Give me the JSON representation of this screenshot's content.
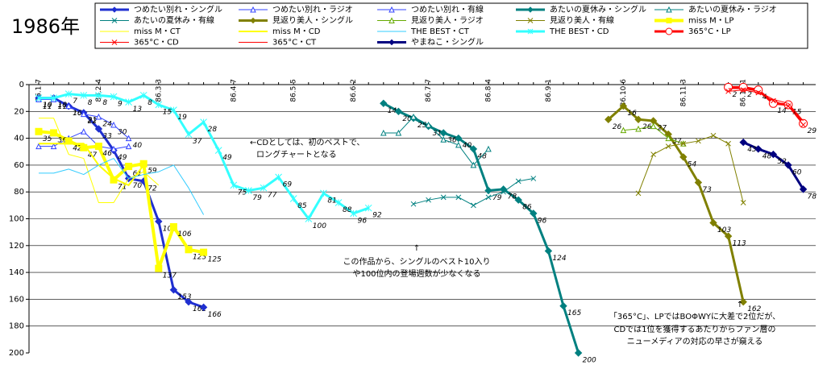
{
  "chart_data": {
    "type": "line",
    "title": "1986年",
    "categories": [
      "86.1.7",
      null,
      null,
      null,
      "86.2.4",
      null,
      null,
      null,
      "86.3.3",
      null,
      null,
      null,
      null,
      "86.4.7",
      null,
      null,
      null,
      "86.5.5",
      null,
      null,
      null,
      "86.6.2",
      null,
      null,
      null,
      null,
      "86.7.7",
      null,
      null,
      null,
      "86.8.4",
      null,
      null,
      null,
      "86.9.1",
      null,
      null,
      null,
      null,
      "86.10.6",
      null,
      null,
      null,
      "86.11.3",
      null,
      null,
      null,
      "86.12.1",
      null,
      null,
      null,
      null
    ],
    "ylim": [
      0,
      200
    ],
    "y_inverted": true,
    "yticks": [
      0,
      20,
      40,
      60,
      80,
      100,
      120,
      140,
      160,
      180,
      200
    ],
    "grid": true,
    "annotations": [
      "←CDとしては、初のベストで、",
      "ロングチャートとなる",
      "↑",
      "この作品から、シングルのベスト10入り",
      "や100位内の登場週数が少なくなる",
      "↑",
      "「365°C」、LPではBOΦWYに大差で2位だが、",
      "CDでは1位を獲得するあたりからファン層の",
      "ニューメディアの対応の早さが窺える"
    ],
    "series": [
      {
        "name": "つめたい別れ・シングル",
        "color": "#1f2fd0",
        "width": 3,
        "marker": "diamond",
        "marker_fill": "#1f2fd0",
        "labels": true,
        "values": [
          10,
          10,
          16,
          21,
          33,
          49,
          70,
          72,
          102,
          153,
          162,
          166,
          null,
          null,
          null,
          null,
          null,
          null,
          null,
          null,
          null,
          null,
          null,
          null,
          null,
          null,
          null,
          null,
          null,
          null,
          null,
          null,
          null,
          null,
          null,
          null,
          null,
          null,
          null,
          null,
          null,
          null,
          null,
          null,
          null,
          null,
          null,
          null,
          null,
          null,
          null,
          null
        ]
      },
      {
        "name": "つめたい別れ・ラジオ",
        "color": "#3344ff",
        "width": 1,
        "marker": "triangle",
        "marker_fill": "#ffffff",
        "labels": false,
        "values": [
          46,
          46,
          40,
          35,
          46,
          48,
          46,
          null,
          null,
          null,
          null,
          null,
          null,
          null,
          null,
          null,
          null,
          null,
          null,
          null,
          null,
          null,
          null,
          null,
          null,
          null,
          null,
          null,
          null,
          null,
          null,
          null,
          null,
          null,
          null,
          null,
          null,
          null,
          null,
          null,
          null,
          null,
          null,
          null,
          null,
          null,
          null,
          null,
          null,
          null,
          null,
          null
        ]
      },
      {
        "name": "つめたい別れ・有線",
        "color": "#3344ff",
        "width": 1,
        "marker": "triangle",
        "marker_fill": "#ffffff",
        "labels": true,
        "values": [
          11,
          11,
          16,
          22,
          24,
          30,
          40,
          null,
          null,
          null,
          null,
          null,
          null,
          null,
          null,
          null,
          null,
          null,
          null,
          null,
          null,
          null,
          null,
          null,
          null,
          null,
          null,
          null,
          null,
          null,
          null,
          null,
          null,
          null,
          null,
          null,
          null,
          null,
          null,
          null,
          null,
          null,
          null,
          null,
          null,
          null,
          null,
          null,
          null,
          null,
          null,
          null
        ]
      },
      {
        "name": "あたいの夏休み・シングル",
        "color": "#008080",
        "width": 3,
        "marker": "diamond",
        "marker_fill": "#008080",
        "labels": true,
        "values": [
          null,
          null,
          null,
          null,
          null,
          null,
          null,
          null,
          null,
          null,
          null,
          null,
          null,
          null,
          null,
          null,
          null,
          null,
          null,
          null,
          null,
          null,
          null,
          14,
          20,
          25,
          31,
          36,
          40,
          48,
          79,
          78,
          86,
          96,
          124,
          165,
          200,
          null,
          null,
          null,
          null,
          null,
          null,
          null,
          null,
          null,
          null,
          null,
          null,
          null,
          null,
          null
        ]
      },
      {
        "name": "あたいの夏休み・ラジオ",
        "color": "#008080",
        "width": 1,
        "marker": "triangle",
        "marker_fill": "#ffffff",
        "labels": false,
        "values": [
          null,
          null,
          null,
          null,
          null,
          null,
          null,
          null,
          null,
          null,
          null,
          null,
          null,
          null,
          null,
          null,
          null,
          null,
          null,
          null,
          null,
          null,
          null,
          36,
          36,
          24,
          30,
          41,
          45,
          60,
          48,
          null,
          null,
          null,
          null,
          null,
          null,
          null,
          null,
          null,
          null,
          null,
          null,
          null,
          null,
          null,
          null,
          null,
          null,
          null,
          null,
          null
        ]
      },
      {
        "name": "あたいの夏休み・有線",
        "color": "#008080",
        "width": 1,
        "marker": "x",
        "marker_fill": "#008080",
        "labels": false,
        "values": [
          null,
          null,
          null,
          null,
          null,
          null,
          null,
          null,
          null,
          null,
          null,
          null,
          null,
          null,
          null,
          null,
          null,
          null,
          null,
          null,
          null,
          null,
          null,
          null,
          null,
          89,
          86,
          84,
          84,
          90,
          84,
          80,
          72,
          70,
          null,
          null,
          null,
          null,
          null,
          null,
          null,
          null,
          null,
          null,
          null,
          null,
          null,
          null,
          null,
          null,
          null,
          null
        ]
      },
      {
        "name": "見返り美人・シングル",
        "color": "#808000",
        "width": 3,
        "marker": "diamond",
        "marker_fill": "#808000",
        "labels": true,
        "values": [
          null,
          null,
          null,
          null,
          null,
          null,
          null,
          null,
          null,
          null,
          null,
          null,
          null,
          null,
          null,
          null,
          null,
          null,
          null,
          null,
          null,
          null,
          null,
          null,
          null,
          null,
          null,
          null,
          null,
          null,
          null,
          null,
          null,
          null,
          null,
          null,
          null,
          null,
          26,
          16,
          26,
          27,
          37,
          54,
          73,
          103,
          113,
          162,
          null,
          null,
          null,
          null
        ]
      },
      {
        "name": "見返り美人・ラジオ",
        "color": "#66aa00",
        "width": 1,
        "marker": "triangle",
        "marker_fill": "#ffffff",
        "labels": false,
        "values": [
          null,
          null,
          null,
          null,
          null,
          null,
          null,
          null,
          null,
          null,
          null,
          null,
          null,
          null,
          null,
          null,
          null,
          null,
          null,
          null,
          null,
          null,
          null,
          null,
          null,
          null,
          null,
          null,
          null,
          null,
          null,
          null,
          null,
          null,
          null,
          null,
          null,
          null,
          null,
          34,
          33,
          31,
          40,
          44,
          null,
          null,
          null,
          null,
          null,
          null,
          null,
          null
        ]
      },
      {
        "name": "見返り美人・有線",
        "color": "#808000",
        "width": 1,
        "marker": "x",
        "marker_fill": "#808000",
        "labels": false,
        "values": [
          null,
          null,
          null,
          null,
          null,
          null,
          null,
          null,
          null,
          null,
          null,
          null,
          null,
          null,
          null,
          null,
          null,
          null,
          null,
          null,
          null,
          null,
          null,
          null,
          null,
          null,
          null,
          null,
          null,
          null,
          null,
          null,
          null,
          null,
          null,
          null,
          null,
          null,
          null,
          null,
          81,
          52,
          46,
          44,
          42,
          38,
          44,
          88,
          null,
          null,
          null,
          null
        ]
      },
      {
        "name": "miss M・LP",
        "color": "#ffff00",
        "width": 4,
        "marker": "square",
        "marker_fill": "#ffff00",
        "labels": true,
        "values": [
          35,
          36,
          42,
          47,
          46,
          71,
          61,
          59,
          137,
          106,
          123,
          125,
          null,
          null,
          null,
          null,
          null,
          null,
          null,
          null,
          null,
          null,
          null,
          null,
          null,
          null,
          null,
          null,
          null,
          null,
          null,
          null,
          null,
          null,
          null,
          null,
          null,
          null,
          null,
          null,
          null,
          null,
          null,
          null,
          null,
          null,
          null,
          null,
          null,
          null,
          null,
          null
        ]
      },
      {
        "name": "miss M・CT",
        "color": "#ffff00",
        "width": 1,
        "marker": "none",
        "marker_fill": "#ffff00",
        "labels": false,
        "values": [
          25,
          25,
          52,
          55,
          88,
          88,
          70,
          65,
          75,
          null,
          null,
          null,
          null,
          null,
          null,
          null,
          null,
          null,
          null,
          null,
          null,
          null,
          null,
          null,
          null,
          null,
          null,
          null,
          null,
          null,
          null,
          null,
          null,
          null,
          null,
          null,
          null,
          null,
          null,
          null,
          null,
          null,
          null,
          null,
          null,
          null,
          null,
          null,
          null,
          null,
          null,
          null
        ]
      },
      {
        "name": "miss M・CD",
        "color": "#ffff00",
        "width": 2,
        "marker": "none",
        "marker_fill": "#ffff00",
        "labels": false,
        "values": [
          44,
          44,
          44,
          44,
          60,
          70,
          75,
          60,
          null,
          null,
          null,
          null,
          null,
          null,
          null,
          null,
          null,
          null,
          null,
          null,
          null,
          null,
          null,
          null,
          null,
          null,
          null,
          null,
          null,
          null,
          null,
          null,
          null,
          null,
          null,
          null,
          null,
          null,
          null,
          null,
          null,
          null,
          null,
          null,
          null,
          null,
          null,
          null,
          null,
          null,
          null,
          null
        ]
      },
      {
        "name": "THE BEST・CT",
        "color": "#33ccff",
        "width": 1,
        "marker": "none",
        "marker_fill": "#33ccff",
        "labels": false,
        "values": [
          66,
          66,
          63,
          67,
          60,
          55,
          70,
          67,
          65,
          60,
          77,
          97,
          null,
          null,
          null,
          null,
          null,
          null,
          null,
          null,
          null,
          null,
          null,
          null,
          null,
          null,
          null,
          null,
          null,
          null,
          null,
          null,
          null,
          null,
          null,
          null,
          null,
          null,
          null,
          null,
          null,
          null,
          null,
          null,
          null,
          null,
          null,
          null,
          null,
          null,
          null,
          null
        ]
      },
      {
        "name": "THE BEST・CD",
        "color": "#33ffff",
        "width": 3,
        "marker": "asterisk",
        "marker_fill": "#33ccff",
        "labels": true,
        "values": [
          10,
          10,
          7,
          8,
          8,
          9,
          13,
          8,
          15,
          19,
          37,
          28,
          49,
          75,
          79,
          77,
          69,
          85,
          100,
          81,
          88,
          96,
          92,
          null,
          null,
          null,
          null,
          null,
          null,
          null,
          null,
          null,
          null,
          null,
          null,
          null,
          null,
          null,
          null,
          null,
          null,
          null,
          null,
          null,
          null,
          null,
          null,
          null,
          null,
          null,
          null,
          null
        ]
      },
      {
        "name": "365°C・LP",
        "color": "#ff0000",
        "width": 3,
        "marker": "circle",
        "marker_fill": "#ffffff",
        "labels": true,
        "values": [
          null,
          null,
          null,
          null,
          null,
          null,
          null,
          null,
          null,
          null,
          null,
          null,
          null,
          null,
          null,
          null,
          null,
          null,
          null,
          null,
          null,
          null,
          null,
          null,
          null,
          null,
          null,
          null,
          null,
          null,
          null,
          null,
          null,
          null,
          null,
          null,
          null,
          null,
          null,
          null,
          null,
          null,
          null,
          null,
          null,
          null,
          2,
          2,
          4,
          14,
          15,
          29
        ]
      },
      {
        "name": "365°C・CD",
        "color": "#ff0000",
        "width": 1,
        "marker": "x",
        "marker_fill": "#ff0000",
        "labels": false,
        "values": [
          null,
          null,
          null,
          null,
          null,
          null,
          null,
          null,
          null,
          null,
          null,
          null,
          null,
          null,
          null,
          null,
          null,
          null,
          null,
          null,
          null,
          null,
          null,
          null,
          null,
          null,
          null,
          null,
          null,
          null,
          null,
          null,
          null,
          null,
          null,
          null,
          null,
          null,
          null,
          null,
          null,
          null,
          null,
          null,
          null,
          null,
          5,
          4,
          6,
          12,
          16,
          30
        ]
      },
      {
        "name": "365°C・CT",
        "color": "#ff0000",
        "width": 1,
        "marker": "none",
        "marker_fill": "#ff0000",
        "labels": false,
        "values": [
          null,
          null,
          null,
          null,
          null,
          null,
          null,
          null,
          null,
          null,
          null,
          null,
          null,
          null,
          null,
          null,
          null,
          null,
          null,
          null,
          null,
          null,
          null,
          null,
          null,
          null,
          null,
          null,
          null,
          null,
          null,
          null,
          null,
          null,
          null,
          null,
          null,
          null,
          null,
          null,
          null,
          null,
          null,
          null,
          null,
          null,
          3,
          3,
          5,
          11,
          14,
          27
        ]
      },
      {
        "name": "やまねこ・シングル",
        "color": "#000080",
        "width": 3,
        "marker": "diamond",
        "marker_fill": "#000080",
        "labels": true,
        "values": [
          null,
          null,
          null,
          null,
          null,
          null,
          null,
          null,
          null,
          null,
          null,
          null,
          null,
          null,
          null,
          null,
          null,
          null,
          null,
          null,
          null,
          null,
          null,
          null,
          null,
          null,
          null,
          null,
          null,
          null,
          null,
          null,
          null,
          null,
          null,
          null,
          null,
          null,
          null,
          null,
          null,
          null,
          null,
          null,
          null,
          null,
          null,
          43,
          48,
          52,
          60,
          78
        ]
      }
    ]
  }
}
